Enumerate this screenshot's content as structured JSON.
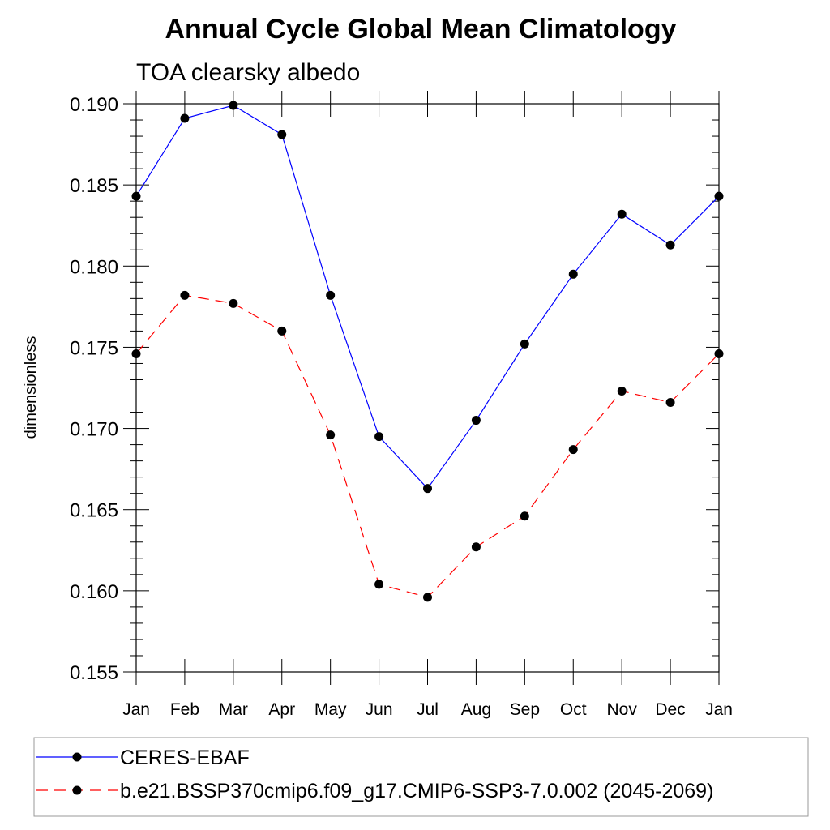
{
  "chart_data": {
    "type": "line",
    "title": "Annual Cycle Global Mean Climatology",
    "subtitle": "TOA clearsky albedo",
    "xlabel": "",
    "ylabel": "dimensionless",
    "categories": [
      "Jan",
      "Feb",
      "Mar",
      "Apr",
      "May",
      "Jun",
      "Jul",
      "Aug",
      "Sep",
      "Oct",
      "Nov",
      "Dec",
      "Jan"
    ],
    "ylim": [
      0.155,
      0.19
    ],
    "yticks": [
      "0.155",
      "0.160",
      "0.165",
      "0.170",
      "0.175",
      "0.180",
      "0.185",
      "0.190"
    ],
    "grid": false,
    "legend_position": "bottom",
    "series": [
      {
        "name": "CERES-EBAF",
        "color": "#0000ff",
        "line_style": "solid",
        "marker": "filled-circle",
        "values": [
          0.1843,
          0.1891,
          0.1899,
          0.1881,
          0.1782,
          0.1695,
          0.1663,
          0.1705,
          0.1752,
          0.1795,
          0.1832,
          0.1813,
          0.1843
        ]
      },
      {
        "name": "b.e21.BSSP370cmip6.f09_g17.CMIP6-SSP3-7.0.002 (2045-2069)",
        "color": "#ff0000",
        "line_style": "dashed",
        "marker": "filled-circle",
        "values": [
          0.1746,
          0.1782,
          0.1777,
          0.176,
          0.1696,
          0.1604,
          0.1596,
          0.1627,
          0.1646,
          0.1687,
          0.1723,
          0.1716,
          0.1746
        ]
      }
    ]
  }
}
